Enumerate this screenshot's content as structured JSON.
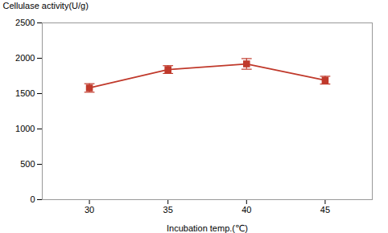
{
  "chart_data": {
    "type": "line",
    "x": [
      30,
      35,
      40,
      45
    ],
    "values": [
      1580,
      1840,
      1920,
      1690
    ],
    "yerr": [
      60,
      55,
      75,
      55
    ],
    "color": "#C0392B",
    "marker": "square",
    "xlabel": "Incubation temp.(℃)",
    "ylabel": "Cellulase activity(U/g)",
    "xlim": [
      27,
      48
    ],
    "ylim": [
      0,
      2500
    ],
    "xticks": [
      30,
      35,
      40,
      45
    ],
    "yticks": [
      0,
      500,
      1000,
      1500,
      2000,
      2500
    ],
    "grid": false
  }
}
